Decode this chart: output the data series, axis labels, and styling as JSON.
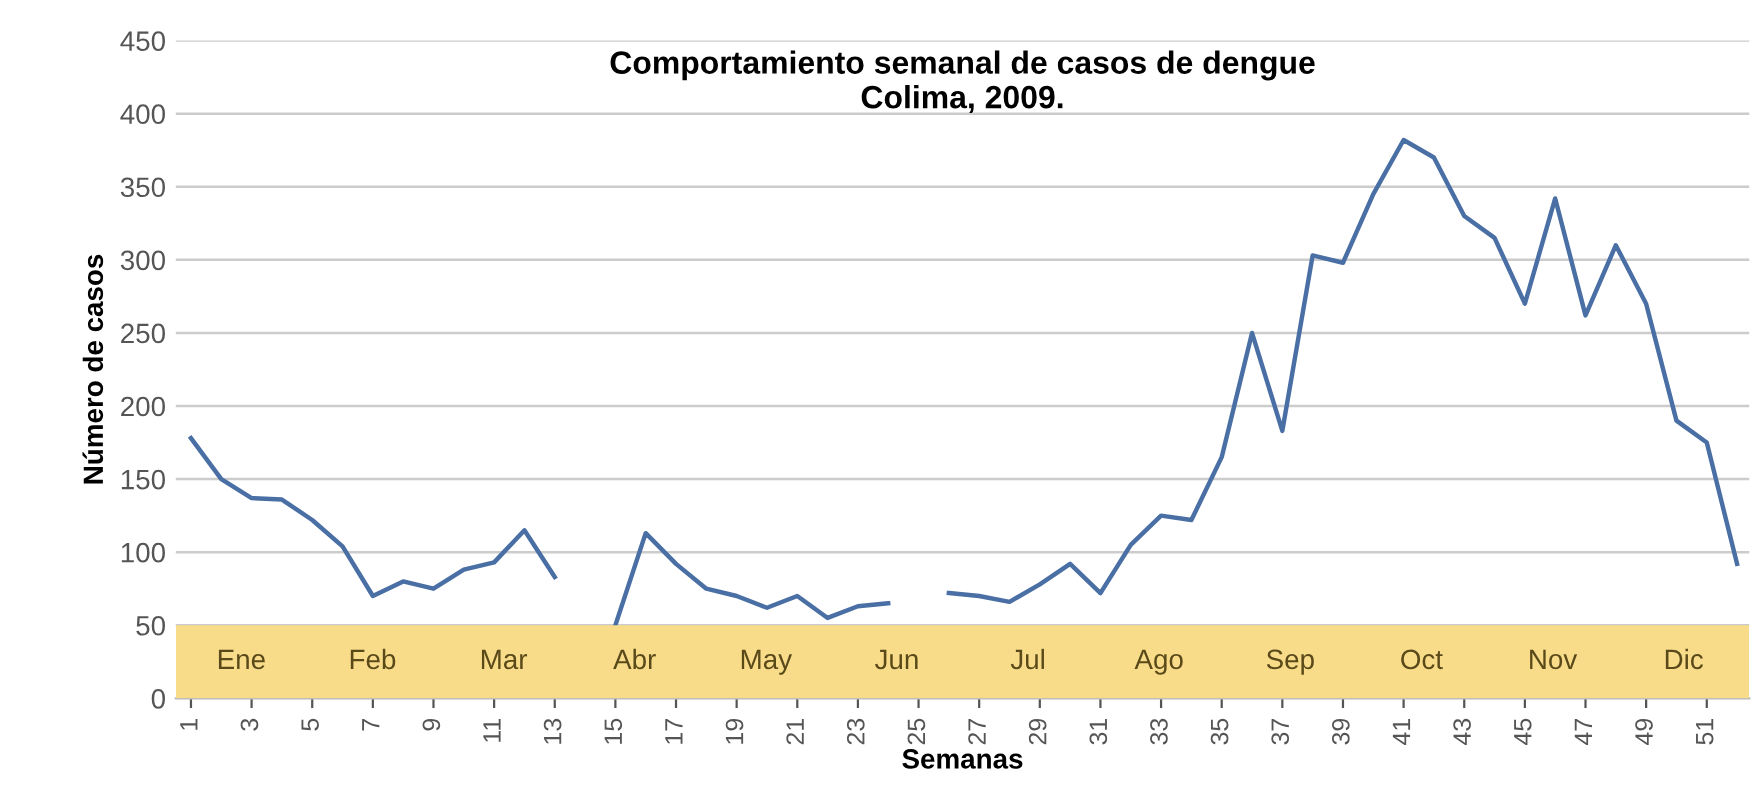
{
  "chart_data": {
    "type": "line",
    "title": "Comportamiento semanal de casos de dengue\nColima, 2009.",
    "xlabel": "Semanas",
    "ylabel": "Número de casos",
    "x": [
      1,
      2,
      3,
      4,
      5,
      6,
      7,
      8,
      9,
      10,
      11,
      12,
      13,
      14,
      15,
      16,
      17,
      18,
      19,
      20,
      21,
      22,
      23,
      24,
      25,
      26,
      27,
      28,
      29,
      30,
      31,
      32,
      33,
      34,
      35,
      36,
      37,
      38,
      39,
      40,
      41,
      42,
      43,
      44,
      45,
      46,
      47,
      48,
      49,
      50,
      51,
      52
    ],
    "series": [
      {
        "color": "#4a6fa5",
        "values": [
          178,
          150,
          137,
          136,
          122,
          104,
          70,
          80,
          75,
          88,
          93,
          115,
          83,
          null,
          50,
          113,
          92,
          75,
          70,
          62,
          70,
          55,
          63,
          65,
          null,
          72,
          70,
          66,
          78,
          92,
          72,
          105,
          125,
          122,
          165,
          250,
          183,
          303,
          298,
          345,
          382,
          370,
          330,
          315,
          270,
          342,
          262,
          310,
          270,
          190,
          175,
          92
        ]
      }
    ],
    "xlim": [
      0.5,
      52.4
    ],
    "xticks": [
      1,
      3,
      5,
      7,
      9,
      11,
      13,
      15,
      17,
      19,
      21,
      23,
      25,
      27,
      29,
      31,
      33,
      35,
      37,
      39,
      41,
      43,
      45,
      47,
      49,
      51
    ],
    "ylim": [
      0,
      450
    ],
    "yticks": [
      0,
      50,
      100,
      150,
      200,
      250,
      300,
      350,
      400,
      450
    ],
    "grid": "y",
    "bands": [
      {
        "axis": "y",
        "from": 0,
        "to": 50,
        "color": "#f9dc8a"
      }
    ],
    "annotations": [
      "Ene",
      "Feb",
      "Mar",
      "Abr",
      "May",
      "Jun",
      "Jul",
      "Ago",
      "Sep",
      "Oct",
      "Nov",
      "Dic"
    ]
  }
}
